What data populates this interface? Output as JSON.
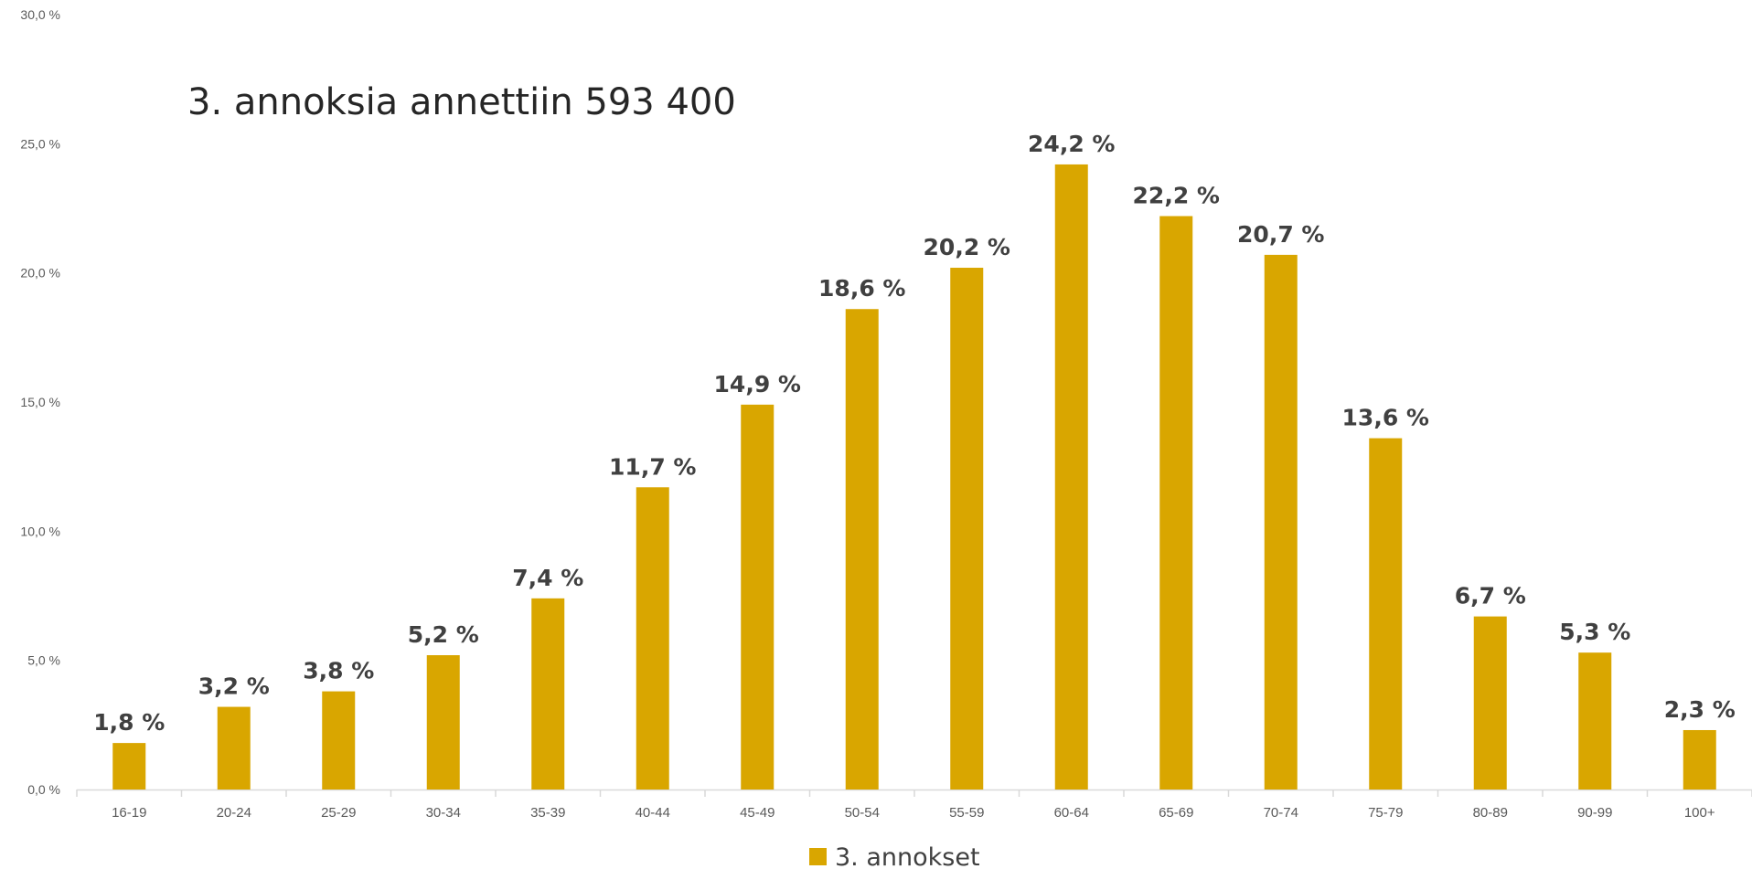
{
  "chart_data": {
    "type": "bar",
    "title": "3. annoksia annettiin 593 400",
    "categories": [
      "16-19",
      "20-24",
      "25-29",
      "30-34",
      "35-39",
      "40-44",
      "45-49",
      "50-54",
      "55-59",
      "60-64",
      "65-69",
      "70-74",
      "75-79",
      "80-89",
      "90-99",
      "100+"
    ],
    "series": [
      {
        "name": "3. annokset",
        "values": [
          1.8,
          3.2,
          3.8,
          5.2,
          7.4,
          11.7,
          14.9,
          18.6,
          20.2,
          24.2,
          22.2,
          20.7,
          13.6,
          6.7,
          5.3,
          2.3
        ],
        "labels": [
          "1,8 %",
          "3,2 %",
          "3,8 %",
          "5,2 %",
          "7,4 %",
          "11,7 %",
          "14,9 %",
          "18,6 %",
          "20,2 %",
          "24,2 %",
          "22,2 %",
          "20,7 %",
          "13,6 %",
          "6,7 %",
          "5,3 %",
          "2,3 %"
        ],
        "color": "#D9A600"
      }
    ],
    "ylim": [
      0,
      30
    ],
    "yticks": [
      {
        "value": 0,
        "label": "0,0 %"
      },
      {
        "value": 5,
        "label": "5,0 %"
      },
      {
        "value": 10,
        "label": "10,0 %"
      },
      {
        "value": 15,
        "label": "15,0 %"
      },
      {
        "value": 20,
        "label": "20,0 %"
      },
      {
        "value": 25,
        "label": "25,0 %"
      },
      {
        "value": 30,
        "label": "30,0 %"
      }
    ],
    "xlabel": "",
    "ylabel": "",
    "grid": false,
    "legend": {
      "position": "bottom-center",
      "label": "3. annokset"
    },
    "axis_color": "#D9D9D9"
  }
}
